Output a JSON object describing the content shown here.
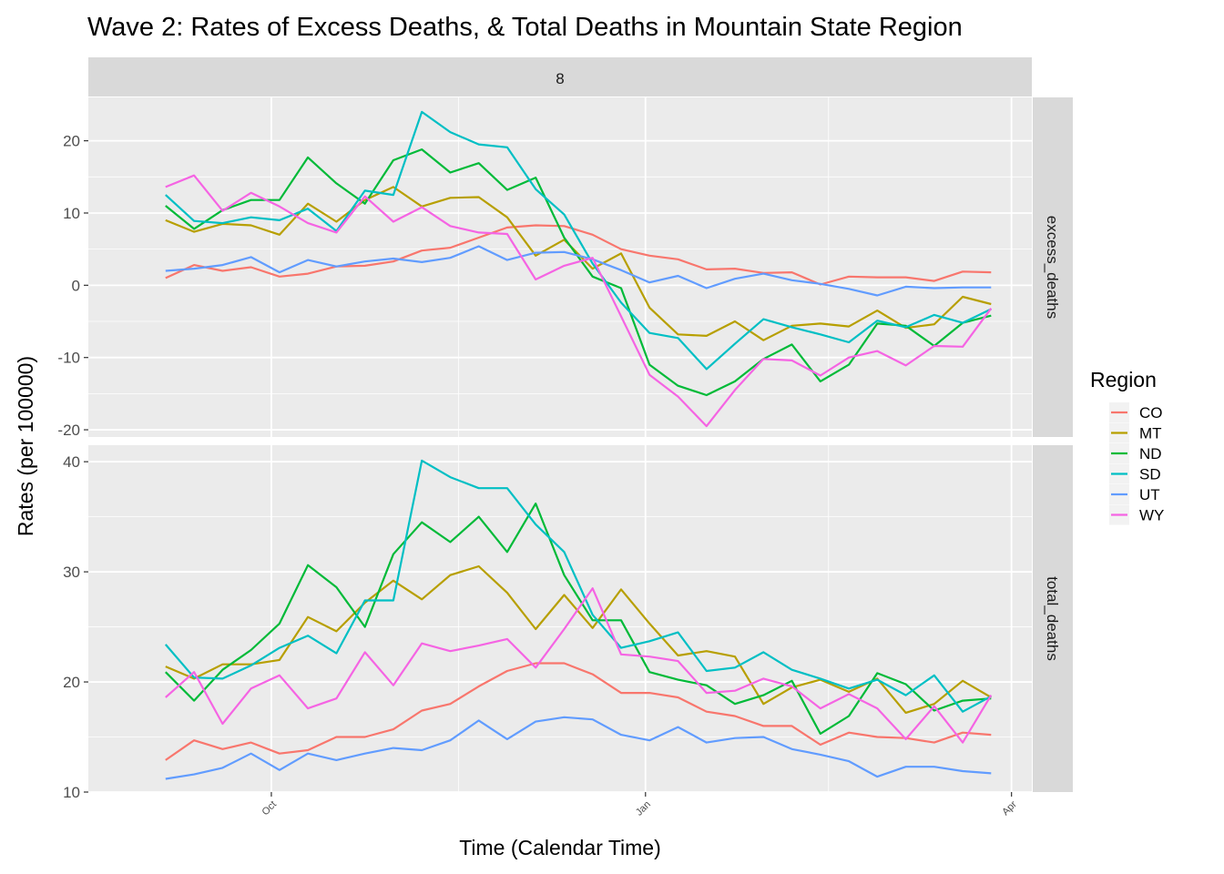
{
  "chart_data": {
    "type": "line",
    "title": "Wave 2: Rates of Excess Deaths, & Total Deaths in Mountain State Region",
    "xlabel": "Time (Calendar Time)",
    "ylabel": "Rates (per 100000)",
    "facet_top_label": "8",
    "x_ticks": [
      {
        "date": "2020-10-01",
        "label": "Oct"
      },
      {
        "date": "2021-01-01",
        "label": "Jan"
      },
      {
        "date": "2021-04-01",
        "label": "Apr"
      }
    ],
    "x_range": [
      "2020-08-17",
      "2021-04-06"
    ],
    "x": [
      "2020-09-05",
      "2020-09-12",
      "2020-09-19",
      "2020-09-26",
      "2020-10-03",
      "2020-10-10",
      "2020-10-17",
      "2020-10-24",
      "2020-10-31",
      "2020-11-07",
      "2020-11-14",
      "2020-11-21",
      "2020-11-28",
      "2020-12-05",
      "2020-12-12",
      "2020-12-19",
      "2020-12-26",
      "2021-01-02",
      "2021-01-09",
      "2021-01-16",
      "2021-01-23",
      "2021-01-30",
      "2021-02-06",
      "2021-02-13",
      "2021-02-20",
      "2021-02-27",
      "2021-03-06",
      "2021-03-13",
      "2021-03-20",
      "2021-03-27"
    ],
    "legend": {
      "title": "Region",
      "position": "right"
    },
    "grid": true,
    "colors": {
      "CO": "#F8766D",
      "MT": "#B79F00",
      "ND": "#00BA38",
      "SD": "#00BFC4",
      "UT": "#619CFF",
      "WY": "#F564E3"
    },
    "panels": [
      {
        "strip_label": "excess_deaths",
        "ylim": [
          -21,
          26
        ],
        "y_ticks": [
          -20,
          -10,
          0,
          10,
          20
        ],
        "series": [
          {
            "name": "CO",
            "values": [
              1.0,
              2.8,
              2.0,
              2.5,
              1.2,
              1.6,
              2.6,
              2.7,
              3.3,
              4.8,
              5.2,
              6.6,
              8.0,
              8.3,
              8.2,
              7.0,
              5.0,
              4.1,
              3.6,
              2.2,
              2.3,
              1.7,
              1.8,
              0.1,
              1.2,
              1.1,
              1.1,
              0.6,
              1.9,
              1.8
            ]
          },
          {
            "name": "MT",
            "values": [
              9.0,
              7.4,
              8.5,
              8.3,
              7.0,
              11.3,
              8.8,
              11.8,
              13.6,
              10.9,
              12.1,
              12.2,
              9.4,
              4.1,
              6.3,
              2.3,
              4.4,
              -3.1,
              -6.8,
              -7.0,
              -5.0,
              -7.6,
              -5.6,
              -5.3,
              -5.7,
              -3.5,
              -5.9,
              -5.4,
              -1.6,
              -2.6
            ]
          },
          {
            "name": "ND",
            "values": [
              11.0,
              7.8,
              10.4,
              11.8,
              11.8,
              17.7,
              14.1,
              11.3,
              17.3,
              18.8,
              15.6,
              16.9,
              13.2,
              14.9,
              6.6,
              1.2,
              -0.4,
              -11.0,
              -13.9,
              -15.2,
              -13.3,
              -10.2,
              -8.2,
              -13.3,
              -11.0,
              -5.3,
              -5.6,
              -8.4,
              -5.2,
              -4.2
            ]
          },
          {
            "name": "SD",
            "values": [
              12.5,
              8.9,
              8.6,
              9.4,
              9.0,
              10.6,
              7.5,
              13.1,
              12.5,
              24.0,
              21.2,
              19.5,
              19.1,
              13.3,
              9.8,
              3.0,
              -2.4,
              -6.6,
              -7.3,
              -11.6,
              -8.1,
              -4.7,
              -5.8,
              -6.8,
              -7.9,
              -4.9,
              -5.8,
              -4.1,
              -5.2,
              -3.3
            ]
          },
          {
            "name": "UT",
            "values": [
              2.0,
              2.3,
              2.8,
              3.9,
              1.8,
              3.5,
              2.6,
              3.3,
              3.7,
              3.2,
              3.8,
              5.4,
              3.5,
              4.5,
              4.6,
              3.6,
              2.1,
              0.4,
              1.3,
              -0.4,
              0.9,
              1.6,
              0.7,
              0.2,
              -0.5,
              -1.4,
              -0.2,
              -0.4,
              -0.3,
              -0.3
            ]
          },
          {
            "name": "WY",
            "values": [
              13.6,
              15.2,
              10.3,
              12.8,
              10.9,
              8.6,
              7.3,
              12.3,
              8.8,
              10.8,
              8.2,
              7.3,
              7.1,
              0.8,
              2.7,
              3.8,
              -4.3,
              -12.4,
              -15.4,
              -19.5,
              -14.5,
              -10.2,
              -10.4,
              -12.5,
              -10.0,
              -9.1,
              -11.1,
              -8.4,
              -8.5,
              -3.2
            ]
          }
        ]
      },
      {
        "strip_label": "total_deaths",
        "ylim": [
          10,
          41.5
        ],
        "y_ticks": [
          10,
          20,
          30,
          40
        ],
        "series": [
          {
            "name": "CO",
            "values": [
              12.9,
              14.7,
              13.9,
              14.5,
              13.5,
              13.8,
              15.0,
              15.0,
              15.7,
              17.4,
              18.0,
              19.6,
              21.0,
              21.7,
              21.7,
              20.7,
              19.0,
              19.0,
              18.6,
              17.3,
              16.9,
              16.0,
              16.0,
              14.3,
              15.4,
              15.0,
              14.9,
              14.5,
              15.4,
              15.2
            ]
          },
          {
            "name": "MT",
            "values": [
              21.4,
              20.3,
              21.6,
              21.6,
              22.0,
              25.9,
              24.6,
              27.2,
              29.2,
              27.5,
              29.7,
              30.5,
              28.1,
              24.8,
              27.9,
              24.9,
              28.4,
              25.3,
              22.4,
              22.8,
              22.3,
              18.0,
              19.5,
              20.2,
              19.1,
              20.3,
              17.2,
              18.0,
              20.1,
              18.6
            ]
          },
          {
            "name": "ND",
            "values": [
              20.9,
              18.3,
              21.1,
              22.9,
              25.3,
              30.6,
              28.6,
              25.0,
              31.6,
              34.5,
              32.7,
              35.0,
              31.8,
              36.2,
              29.7,
              25.6,
              25.6,
              20.9,
              20.2,
              19.7,
              18.0,
              18.8,
              20.1,
              15.3,
              16.9,
              20.8,
              19.8,
              17.4,
              18.3,
              18.5
            ]
          },
          {
            "name": "SD",
            "values": [
              23.4,
              20.4,
              20.3,
              21.5,
              23.1,
              24.2,
              22.6,
              27.4,
              27.4,
              40.1,
              38.6,
              37.6,
              37.6,
              34.3,
              31.8,
              26.1,
              23.1,
              23.7,
              24.5,
              21.0,
              21.3,
              22.7,
              21.1,
              20.3,
              19.4,
              20.2,
              18.8,
              20.6,
              17.3,
              18.7
            ]
          },
          {
            "name": "UT",
            "values": [
              11.2,
              11.6,
              12.2,
              13.5,
              12.0,
              13.5,
              12.9,
              13.5,
              14.0,
              13.8,
              14.7,
              16.5,
              14.8,
              16.4,
              16.8,
              16.6,
              15.2,
              14.7,
              15.9,
              14.5,
              14.9,
              15.0,
              13.9,
              13.4,
              12.8,
              11.4,
              12.3,
              12.3,
              11.9,
              11.7
            ]
          },
          {
            "name": "WY",
            "values": [
              18.6,
              20.9,
              16.2,
              19.4,
              20.6,
              17.6,
              18.5,
              22.7,
              19.7,
              23.5,
              22.8,
              23.3,
              23.9,
              21.3,
              24.8,
              28.5,
              22.5,
              22.3,
              21.9,
              19.0,
              19.2,
              20.3,
              19.6,
              17.6,
              18.9,
              17.6,
              14.8,
              17.8,
              14.5,
              18.8
            ]
          }
        ]
      }
    ]
  }
}
